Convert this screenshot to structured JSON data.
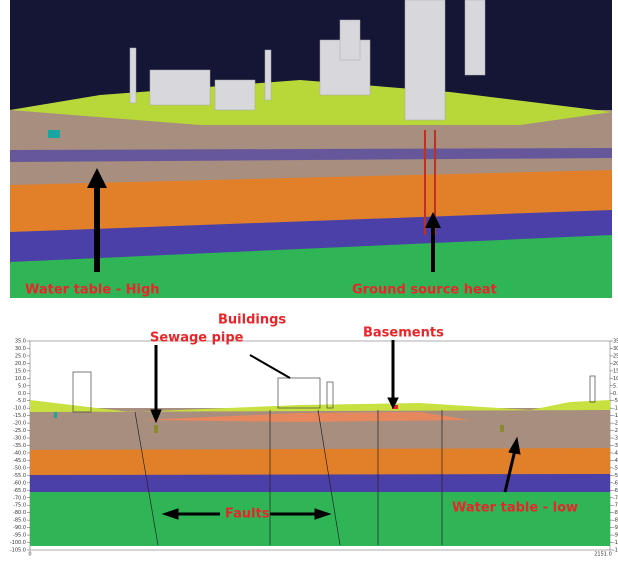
{
  "model_view": {
    "labels": [
      "Water table - High",
      "Ground source heat"
    ]
  },
  "section": {
    "labels": [
      "Sewage pipe",
      "Buildings",
      "Basements",
      "Faults",
      "Water table - low"
    ],
    "yticks": [
      "35.0",
      "30.0",
      "25.0",
      "20.0",
      "15.0",
      "10.0",
      "5.0",
      "0.0",
      "-5.0",
      "-10.0",
      "-15.0",
      "-20.0",
      "-25.0",
      "-30.0",
      "-35.0",
      "-40.0",
      "-45.0",
      "-50.0",
      "-55.0",
      "-60.0",
      "-65.0",
      "-70.0",
      "-75.0",
      "-80.0",
      "-85.0",
      "-90.0",
      "-95.0",
      "-100.0",
      "-105.0"
    ],
    "xticks": [
      "0",
      "2151.0"
    ]
  }
}
